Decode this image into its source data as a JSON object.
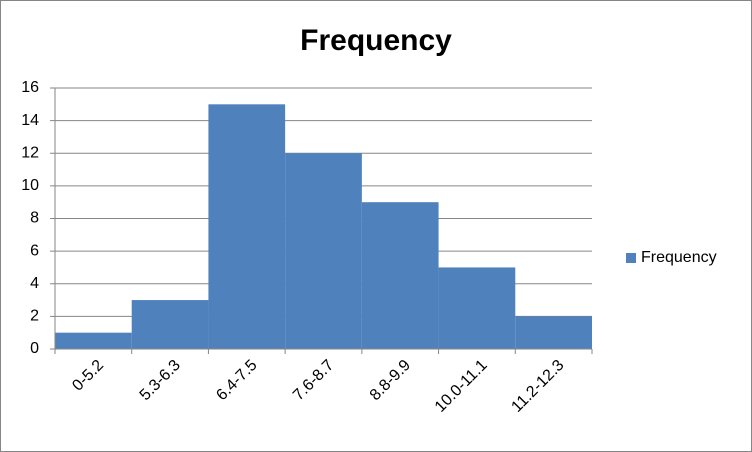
{
  "chart_data": {
    "type": "bar",
    "title": "Frequency",
    "categories": [
      "0-5.2",
      "5.3-6.3",
      "6.4-7.5",
      "7.6-8.7",
      "8.8-9.9",
      "10.0-11.1",
      "11.2-12.3"
    ],
    "series": [
      {
        "name": "Frequency",
        "color": "#4f81bd",
        "values": [
          1,
          3,
          15,
          12,
          9,
          5,
          2
        ]
      }
    ],
    "ylim": [
      0,
      16
    ],
    "yticks": [
      0,
      2,
      4,
      6,
      8,
      10,
      12,
      14,
      16
    ],
    "grid": true,
    "legend": "right"
  }
}
